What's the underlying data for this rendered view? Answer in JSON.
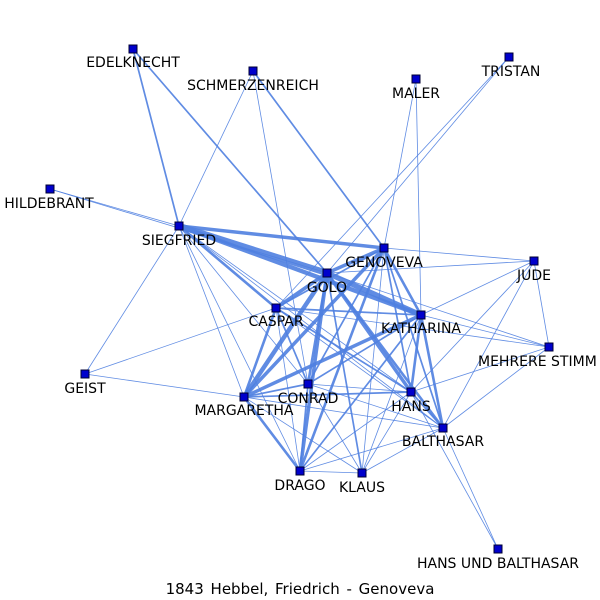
{
  "caption": "1843  Hebbel,  Friedrich  -  Genoveva",
  "edge_color": "#4f7fe0",
  "node_color": "#0000cc",
  "nodes": [
    {
      "id": "EDELKNECHT",
      "label": "EDELKNECHT"
    },
    {
      "id": "SCHMERZENREICH",
      "label": "SCHMERZENREICH"
    },
    {
      "id": "MALER",
      "label": "MALER"
    },
    {
      "id": "TRISTAN",
      "label": "TRISTAN"
    },
    {
      "id": "HILDEBRANT",
      "label": "HILDEBRANT"
    },
    {
      "id": "SIEGFRIED",
      "label": "SIEGFRIED"
    },
    {
      "id": "GENOVEVA",
      "label": "GENOVEVA"
    },
    {
      "id": "GOLO",
      "label": "GOLO"
    },
    {
      "id": "JUDE",
      "label": "JUDE"
    },
    {
      "id": "CASPAR",
      "label": "CASPAR"
    },
    {
      "id": "KATHARINA",
      "label": "KATHARINA"
    },
    {
      "id": "MEHRERE",
      "label": "MEHRERE STIMM"
    },
    {
      "id": "GEIST",
      "label": "GEIST"
    },
    {
      "id": "CONRAD",
      "label": "CONRAD"
    },
    {
      "id": "MARGARETHA",
      "label": "MARGARETHA"
    },
    {
      "id": "HANS",
      "label": "HANS"
    },
    {
      "id": "BALTHASAR",
      "label": "BALTHASAR"
    },
    {
      "id": "DRAGO",
      "label": "DRAGO"
    },
    {
      "id": "KLAUS",
      "label": "KLAUS"
    },
    {
      "id": "HUB",
      "label": "HANS UND BALTHASAR"
    }
  ],
  "edges": [
    [
      "SIEGFRIED",
      "GOLO",
      7
    ],
    [
      "SIEGFRIED",
      "GENOVEVA",
      4
    ],
    [
      "SIEGFRIED",
      "KATHARINA",
      5
    ],
    [
      "SIEGFRIED",
      "CASPAR",
      3
    ],
    [
      "SIEGFRIED",
      "MARGARETHA",
      1
    ],
    [
      "SIEGFRIED",
      "CONRAD",
      1
    ],
    [
      "SIEGFRIED",
      "HANS",
      1
    ],
    [
      "SIEGFRIED",
      "BALTHASAR",
      1
    ],
    [
      "SIEGFRIED",
      "DRAGO",
      1
    ],
    [
      "SIEGFRIED",
      "GEIST",
      1
    ],
    [
      "SIEGFRIED",
      "HILDEBRANT",
      1
    ],
    [
      "SIEGFRIED",
      "EDELKNECHT",
      2
    ],
    [
      "SIEGFRIED",
      "SCHMERZENREICH",
      1
    ],
    [
      "EDELKNECHT",
      "GOLO",
      2
    ],
    [
      "HILDEBRANT",
      "GOLO",
      1
    ],
    [
      "SCHMERZENREICH",
      "GENOVEVA",
      2
    ],
    [
      "SCHMERZENREICH",
      "CONRAD",
      1
    ],
    [
      "MALER",
      "GENOVEVA",
      1
    ],
    [
      "MALER",
      "KATHARINA",
      1
    ],
    [
      "TRISTAN",
      "GOLO",
      1
    ],
    [
      "TRISTAN",
      "CASPAR",
      1
    ],
    [
      "GOLO",
      "GENOVEVA",
      4
    ],
    [
      "GOLO",
      "KATHARINA",
      6
    ],
    [
      "GOLO",
      "CASPAR",
      4
    ],
    [
      "GOLO",
      "MARGARETHA",
      5
    ],
    [
      "GOLO",
      "CONRAD",
      3
    ],
    [
      "GOLO",
      "HANS",
      4
    ],
    [
      "GOLO",
      "BALTHASAR",
      3
    ],
    [
      "GOLO",
      "DRAGO",
      4
    ],
    [
      "GOLO",
      "KLAUS",
      2
    ],
    [
      "GOLO",
      "JUDE",
      1
    ],
    [
      "GOLO",
      "MEHRERE",
      1
    ],
    [
      "GENOVEVA",
      "KATHARINA",
      3
    ],
    [
      "GENOVEVA",
      "CASPAR",
      2
    ],
    [
      "GENOVEVA",
      "MARGARETHA",
      4
    ],
    [
      "GENOVEVA",
      "DRAGO",
      3
    ],
    [
      "GENOVEVA",
      "HANS",
      2
    ],
    [
      "GENOVEVA",
      "BALTHASAR",
      2
    ],
    [
      "GENOVEVA",
      "JUDE",
      1
    ],
    [
      "GENOVEVA",
      "KLAUS",
      1
    ],
    [
      "GENOVEVA",
      "CONRAD",
      2
    ],
    [
      "KATHARINA",
      "CASPAR",
      2
    ],
    [
      "KATHARINA",
      "MARGARETHA",
      4
    ],
    [
      "KATHARINA",
      "CONRAD",
      2
    ],
    [
      "KATHARINA",
      "HANS",
      3
    ],
    [
      "KATHARINA",
      "BALTHASAR",
      3
    ],
    [
      "KATHARINA",
      "DRAGO",
      2
    ],
    [
      "KATHARINA",
      "KLAUS",
      1
    ],
    [
      "KATHARINA",
      "MEHRERE",
      1
    ],
    [
      "KATHARINA",
      "JUDE",
      1
    ],
    [
      "CASPAR",
      "MARGARETHA",
      3
    ],
    [
      "CASPAR",
      "CONRAD",
      2
    ],
    [
      "CASPAR",
      "HANS",
      2
    ],
    [
      "CASPAR",
      "BALTHASAR",
      1
    ],
    [
      "CASPAR",
      "DRAGO",
      1
    ],
    [
      "CASPAR",
      "MEHRERE",
      1
    ],
    [
      "MARGARETHA",
      "CONRAD",
      2
    ],
    [
      "MARGARETHA",
      "DRAGO",
      3
    ],
    [
      "MARGARETHA",
      "HANS",
      2
    ],
    [
      "MARGARETHA",
      "BALTHASAR",
      1
    ],
    [
      "MARGARETHA",
      "KLAUS",
      1
    ],
    [
      "MARGARETHA",
      "GEIST",
      1
    ],
    [
      "CONRAD",
      "HANS",
      1
    ],
    [
      "CONRAD",
      "BALTHASAR",
      1
    ],
    [
      "CONRAD",
      "DRAGO",
      2
    ],
    [
      "CONRAD",
      "KLAUS",
      1
    ],
    [
      "HANS",
      "BALTHASAR",
      2
    ],
    [
      "HANS",
      "KLAUS",
      1
    ],
    [
      "HANS",
      "DRAGO",
      1
    ],
    [
      "HANS",
      "MEHRERE",
      1
    ],
    [
      "HANS",
      "JUDE",
      1
    ],
    [
      "BALTHASAR",
      "DRAGO",
      1
    ],
    [
      "BALTHASAR",
      "KLAUS",
      1
    ],
    [
      "BALTHASAR",
      "MEHRERE",
      1
    ],
    [
      "BALTHASAR",
      "JUDE",
      1
    ],
    [
      "BALTHASAR",
      "HUB",
      1
    ],
    [
      "HANS",
      "HUB",
      1
    ],
    [
      "DRAGO",
      "KLAUS",
      1
    ],
    [
      "JUDE",
      "MEHRERE",
      1
    ],
    [
      "GEIST",
      "CASPAR",
      1
    ]
  ]
}
